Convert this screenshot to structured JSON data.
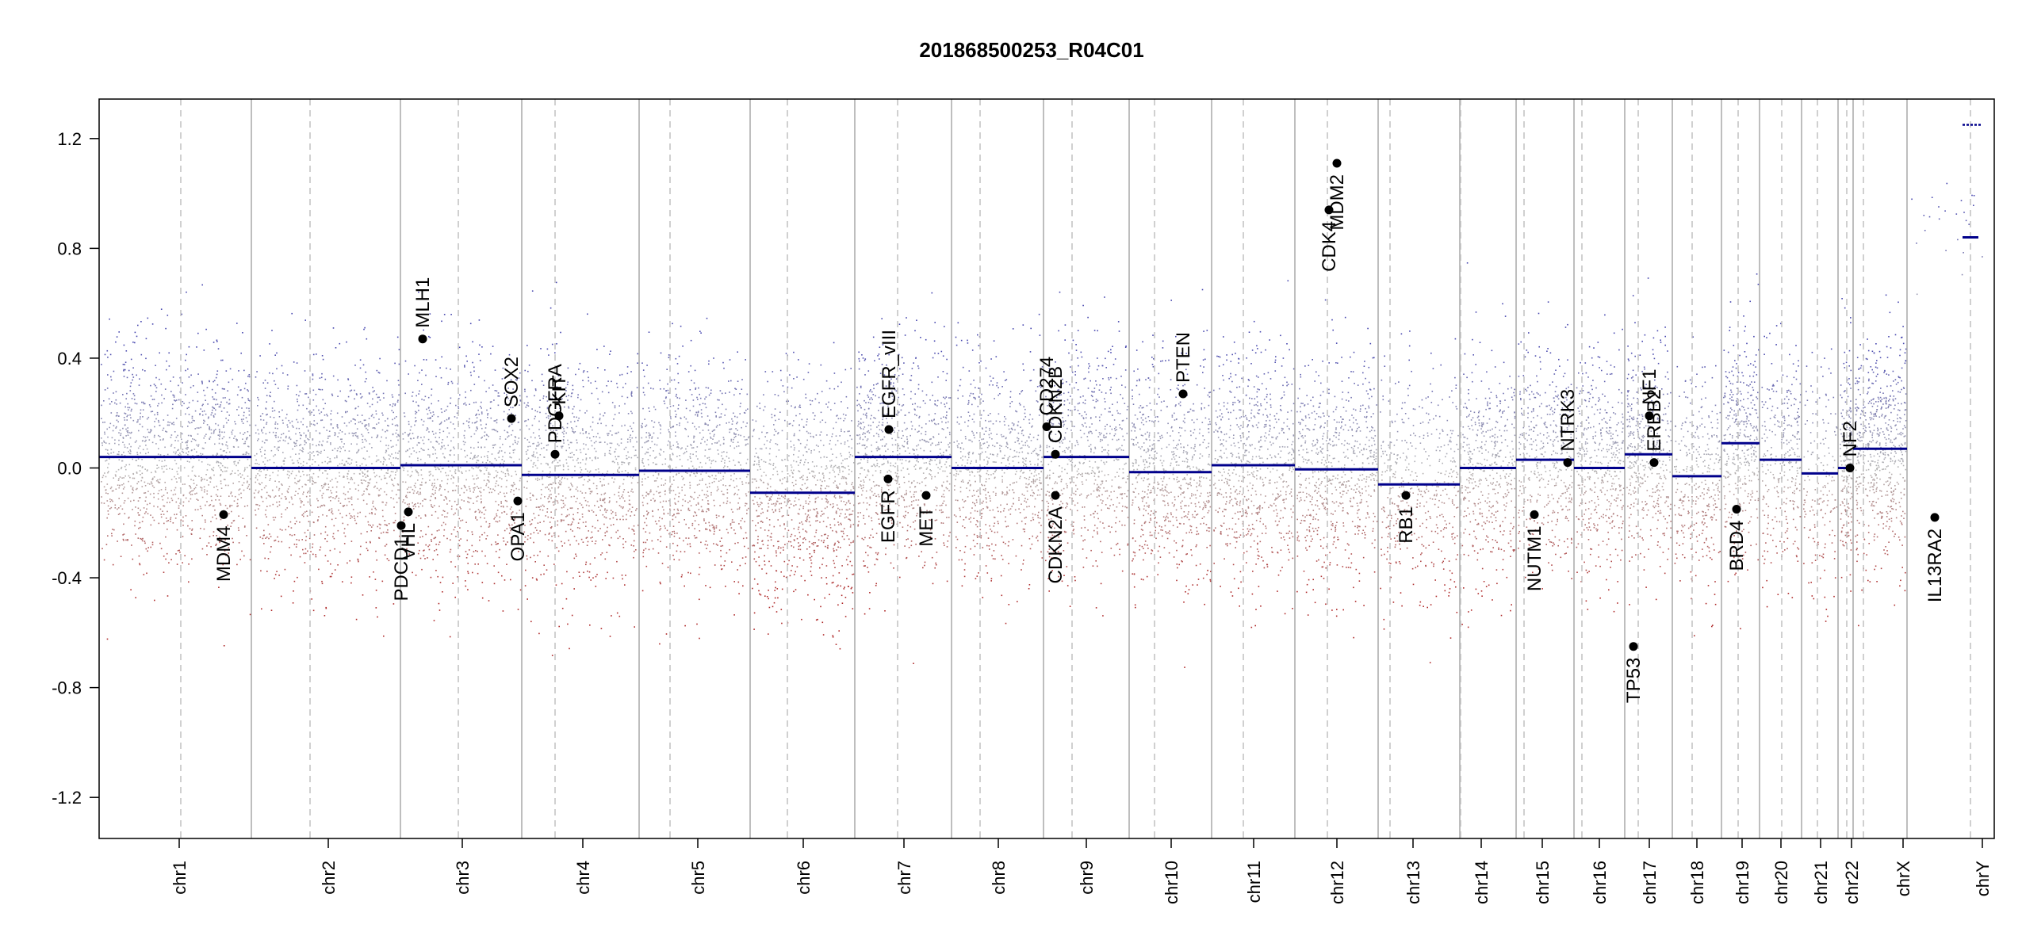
{
  "chart_data": {
    "type": "scatter",
    "title": "201868500253_R04C01",
    "xlabel": "",
    "ylabel": "",
    "ylim": [
      -1.35,
      1.35
    ],
    "y_ticks": [
      "-1.2",
      "-0.8",
      "-0.4",
      "0.0",
      "0.4",
      "0.8",
      "1.2"
    ],
    "grid": false,
    "colors": {
      "segment": "#00008b",
      "gain_points": "#4b4bb0",
      "neutral_points": "#b4b4b4",
      "loss_points": "#b03030",
      "gene_points": "#000000",
      "chrom_boundary": "#a8a8a8",
      "centromere": "#c0c0c0"
    },
    "chromosomes": [
      {
        "name": "chr1",
        "segment": 0.04,
        "points": 1200
      },
      {
        "name": "chr2",
        "segment": 0.0,
        "points": 1150
      },
      {
        "name": "chr3",
        "segment": 0.01,
        "points": 950
      },
      {
        "name": "chr4",
        "segment": -0.025,
        "points": 900
      },
      {
        "name": "chr5",
        "segment": -0.01,
        "points": 850
      },
      {
        "name": "chr6",
        "segment": -0.09,
        "points": 880
      },
      {
        "name": "chr7",
        "segment": 0.04,
        "points": 800
      },
      {
        "name": "chr8",
        "segment": 0.0,
        "points": 700
      },
      {
        "name": "chr9",
        "segment": 0.04,
        "points": 650
      },
      {
        "name": "chr10",
        "segment": -0.015,
        "points": 700
      },
      {
        "name": "chr11",
        "segment": 0.01,
        "points": 700
      },
      {
        "name": "chr12",
        "segment": -0.005,
        "points": 680
      },
      {
        "name": "chr13",
        "segment": -0.06,
        "points": 450
      },
      {
        "name": "chr14",
        "segment": 0.0,
        "points": 450
      },
      {
        "name": "chr15",
        "segment": 0.03,
        "points": 420
      },
      {
        "name": "chr16",
        "segment": 0.0,
        "points": 420
      },
      {
        "name": "chr17",
        "segment": 0.05,
        "points": 420
      },
      {
        "name": "chr18",
        "segment": -0.03,
        "points": 320
      },
      {
        "name": "chr19",
        "segment": 0.09,
        "points": 350
      },
      {
        "name": "chr20",
        "segment": 0.03,
        "points": 300
      },
      {
        "name": "chr21",
        "segment": -0.02,
        "points": 160
      },
      {
        "name": "chr22",
        "segment": 0.0,
        "points": 180
      },
      {
        "name": "chrX",
        "segment": 0.07,
        "points": 600
      },
      {
        "name": "chrY",
        "segment": 0.84,
        "points": 25
      }
    ],
    "extra_segments": [
      {
        "chrom": "chrY",
        "value": 1.25
      }
    ],
    "genes": [
      {
        "name": "MDM4",
        "chrom": "chr1",
        "y": -0.17
      },
      {
        "name": "PDCD1",
        "chrom": "chr2",
        "y": -0.21
      },
      {
        "name": "VHL",
        "chrom": "chr3",
        "y": -0.16
      },
      {
        "name": "MLH1",
        "chrom": "chr3",
        "y": 0.47
      },
      {
        "name": "SOX2",
        "chrom": "chr3",
        "y": 0.18
      },
      {
        "name": "OPA1",
        "chrom": "chr3",
        "y": -0.12
      },
      {
        "name": "PDGFRA",
        "chrom": "chr4",
        "y": 0.05
      },
      {
        "name": "KIT",
        "chrom": "chr4",
        "y": 0.19
      },
      {
        "name": "EGFR_vIII",
        "chrom": "chr7",
        "y": 0.14
      },
      {
        "name": "EGFR",
        "chrom": "chr7",
        "y": -0.04
      },
      {
        "name": "MET",
        "chrom": "chr7",
        "y": -0.1
      },
      {
        "name": "CD274",
        "chrom": "chr9",
        "y": 0.15
      },
      {
        "name": "CDKN2B",
        "chrom": "chr9",
        "y": 0.05
      },
      {
        "name": "CDKN2A",
        "chrom": "chr9",
        "y": -0.1
      },
      {
        "name": "PTEN",
        "chrom": "chr10",
        "y": 0.27
      },
      {
        "name": "CDK4",
        "chrom": "chr12",
        "y": 0.94
      },
      {
        "name": "MDM2",
        "chrom": "chr12",
        "y": 1.11
      },
      {
        "name": "RB1",
        "chrom": "chr13",
        "y": -0.1
      },
      {
        "name": "NUTM1",
        "chrom": "chr15",
        "y": -0.17
      },
      {
        "name": "NTRK3",
        "chrom": "chr15",
        "y": 0.02
      },
      {
        "name": "TP53",
        "chrom": "chr17",
        "y": -0.65
      },
      {
        "name": "NF1",
        "chrom": "chr17",
        "y": 0.19
      },
      {
        "name": "ERBB2",
        "chrom": "chr17",
        "y": 0.02
      },
      {
        "name": "BRD4",
        "chrom": "chr19",
        "y": -0.15
      },
      {
        "name": "NF2",
        "chrom": "chr22",
        "y": 0.0
      },
      {
        "name": "IL13RA2",
        "chrom": "chrX",
        "y": -0.18
      }
    ]
  }
}
